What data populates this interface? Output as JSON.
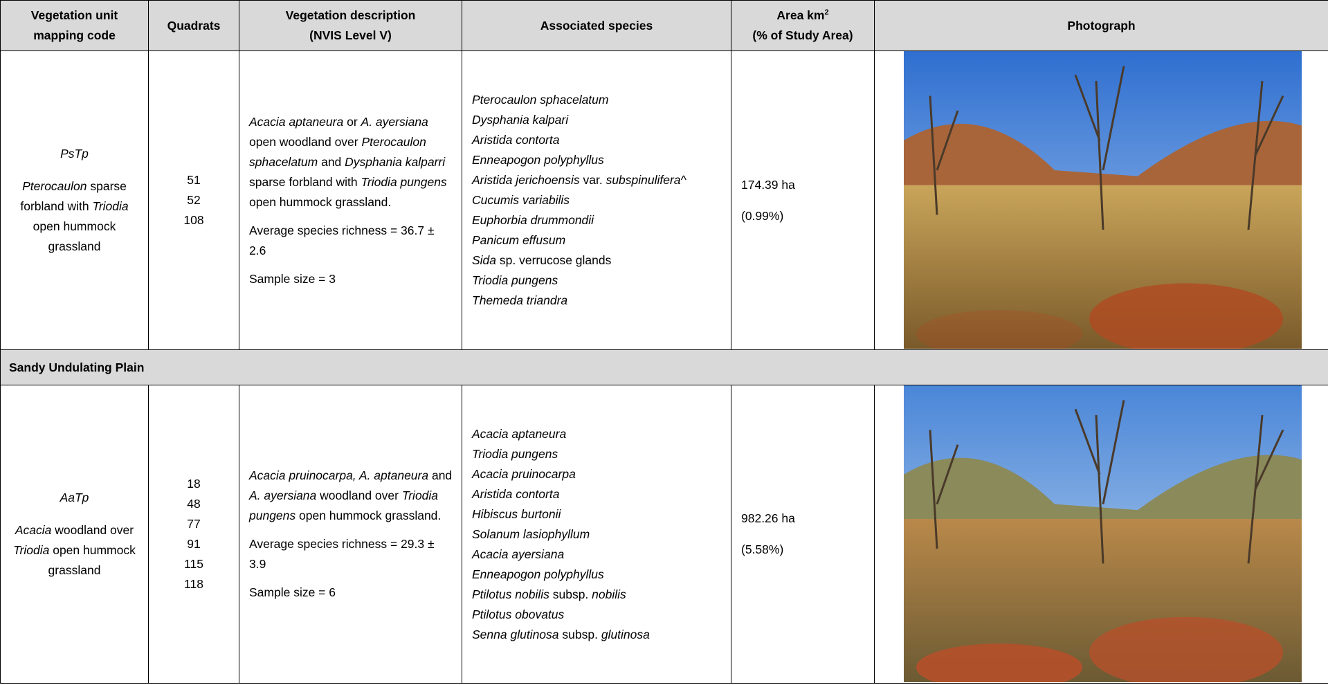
{
  "table": {
    "headers": [
      {
        "lines": [
          "Vegetation unit",
          "mapping code"
        ]
      },
      {
        "lines": [
          "Quadrats"
        ]
      },
      {
        "lines": [
          "Vegetation description",
          "(NVIS Level V)"
        ]
      },
      {
        "lines": [
          "Associated species"
        ]
      },
      {
        "lines": [
          "Area km",
          "(% of Study Area)"
        ],
        "sup": "2"
      },
      {
        "lines": [
          "Photograph"
        ]
      }
    ],
    "section_heading": "Sandy Undulating Plain",
    "rows": [
      {
        "code": "PsTp",
        "code_description": [
          {
            "t": "Pterocaulon",
            "i": true
          },
          {
            "t": " sparse forbland with "
          },
          {
            "t": "Triodia",
            "i": true
          },
          {
            "t": " open hummock grassland"
          }
        ],
        "quadrats": [
          51,
          52,
          108
        ],
        "description": [
          {
            "t": "Acacia aptaneura",
            "i": true
          },
          {
            "t": " or "
          },
          {
            "t": "A. ayersiana",
            "i": true
          },
          {
            "t": " open woodland over "
          },
          {
            "t": "Pterocaulon sphacelatum",
            "i": true
          },
          {
            "t": " and "
          },
          {
            "t": "Dysphania kalparri",
            "i": true
          },
          {
            "t": " sparse forbland with "
          },
          {
            "t": "Triodia pungens",
            "i": true
          },
          {
            "t": " open hummock grassland."
          }
        ],
        "richness": "Average species richness = 36.7 ± 2.6",
        "sample_size": "Sample size = 3",
        "species": [
          [
            {
              "t": "Pterocaulon sphacelatum",
              "i": true
            }
          ],
          [
            {
              "t": "Dysphania kalpari",
              "i": true
            }
          ],
          [
            {
              "t": "Aristida contorta",
              "i": true
            }
          ],
          [
            {
              "t": "Enneapogon polyphyllus",
              "i": true
            }
          ],
          [
            {
              "t": "Aristida jerichoensis",
              "i": true
            },
            {
              "t": " var. "
            },
            {
              "t": "subspinulifera^",
              "i": true
            }
          ],
          [
            {
              "t": "Cucumis variabilis",
              "i": true
            }
          ],
          [
            {
              "t": "Euphorbia drummondii",
              "i": true
            }
          ],
          [
            {
              "t": "Panicum effusum",
              "i": true
            }
          ],
          [
            {
              "t": "Sida",
              "i": true
            },
            {
              "t": " sp. verrucose glands"
            }
          ],
          [
            {
              "t": "Triodia pungens",
              "i": true
            }
          ],
          [
            {
              "t": "Themeda triandra",
              "i": true
            }
          ]
        ],
        "area": "174.39 ha",
        "area_percent": "(0.99%)"
      },
      {
        "code": "AaTp",
        "code_description": [
          {
            "t": "Acacia",
            "i": true
          },
          {
            "t": " woodland over "
          },
          {
            "t": "Triodia",
            "i": true
          },
          {
            "t": " open hummock grassland"
          }
        ],
        "quadrats": [
          18,
          48,
          77,
          91,
          115,
          118
        ],
        "description": [
          {
            "t": "Acacia pruinocarpa, A. aptaneura",
            "i": true
          },
          {
            "t": " and "
          },
          {
            "t": "A. ayersiana",
            "i": true
          },
          {
            "t": " woodland over "
          },
          {
            "t": "Triodia pungens",
            "i": true
          },
          {
            "t": " open hummock grassland."
          }
        ],
        "richness": "Average species richness = 29.3 ± 3.9",
        "sample_size": "Sample size = 6",
        "species": [
          [
            {
              "t": "Acacia aptaneura",
              "i": true
            }
          ],
          [
            {
              "t": "Triodia pungens",
              "i": true
            }
          ],
          [
            {
              "t": "Acacia pruinocarpa",
              "i": true
            }
          ],
          [
            {
              "t": "Aristida contorta",
              "i": true
            }
          ],
          [
            {
              "t": "Hibiscus burtonii",
              "i": true
            }
          ],
          [
            {
              "t": "Solanum lasiophyllum",
              "i": true
            }
          ],
          [
            {
              "t": "Acacia ayersiana",
              "i": true
            }
          ],
          [
            {
              "t": "Enneapogon polyphyllus",
              "i": true
            }
          ],
          [
            {
              "t": "Ptilotus nobilis",
              "i": true
            },
            {
              "t": " subsp. "
            },
            {
              "t": "nobilis",
              "i": true
            }
          ],
          [
            {
              "t": "Ptilotus obovatus",
              "i": true
            }
          ],
          [
            {
              "t": "Senna glutinosa",
              "i": true
            },
            {
              "t": " subsp. "
            },
            {
              "t": "glutinosa",
              "i": true
            }
          ]
        ],
        "area": "982.26 ha",
        "area_percent": "(5.58%)"
      }
    ]
  }
}
